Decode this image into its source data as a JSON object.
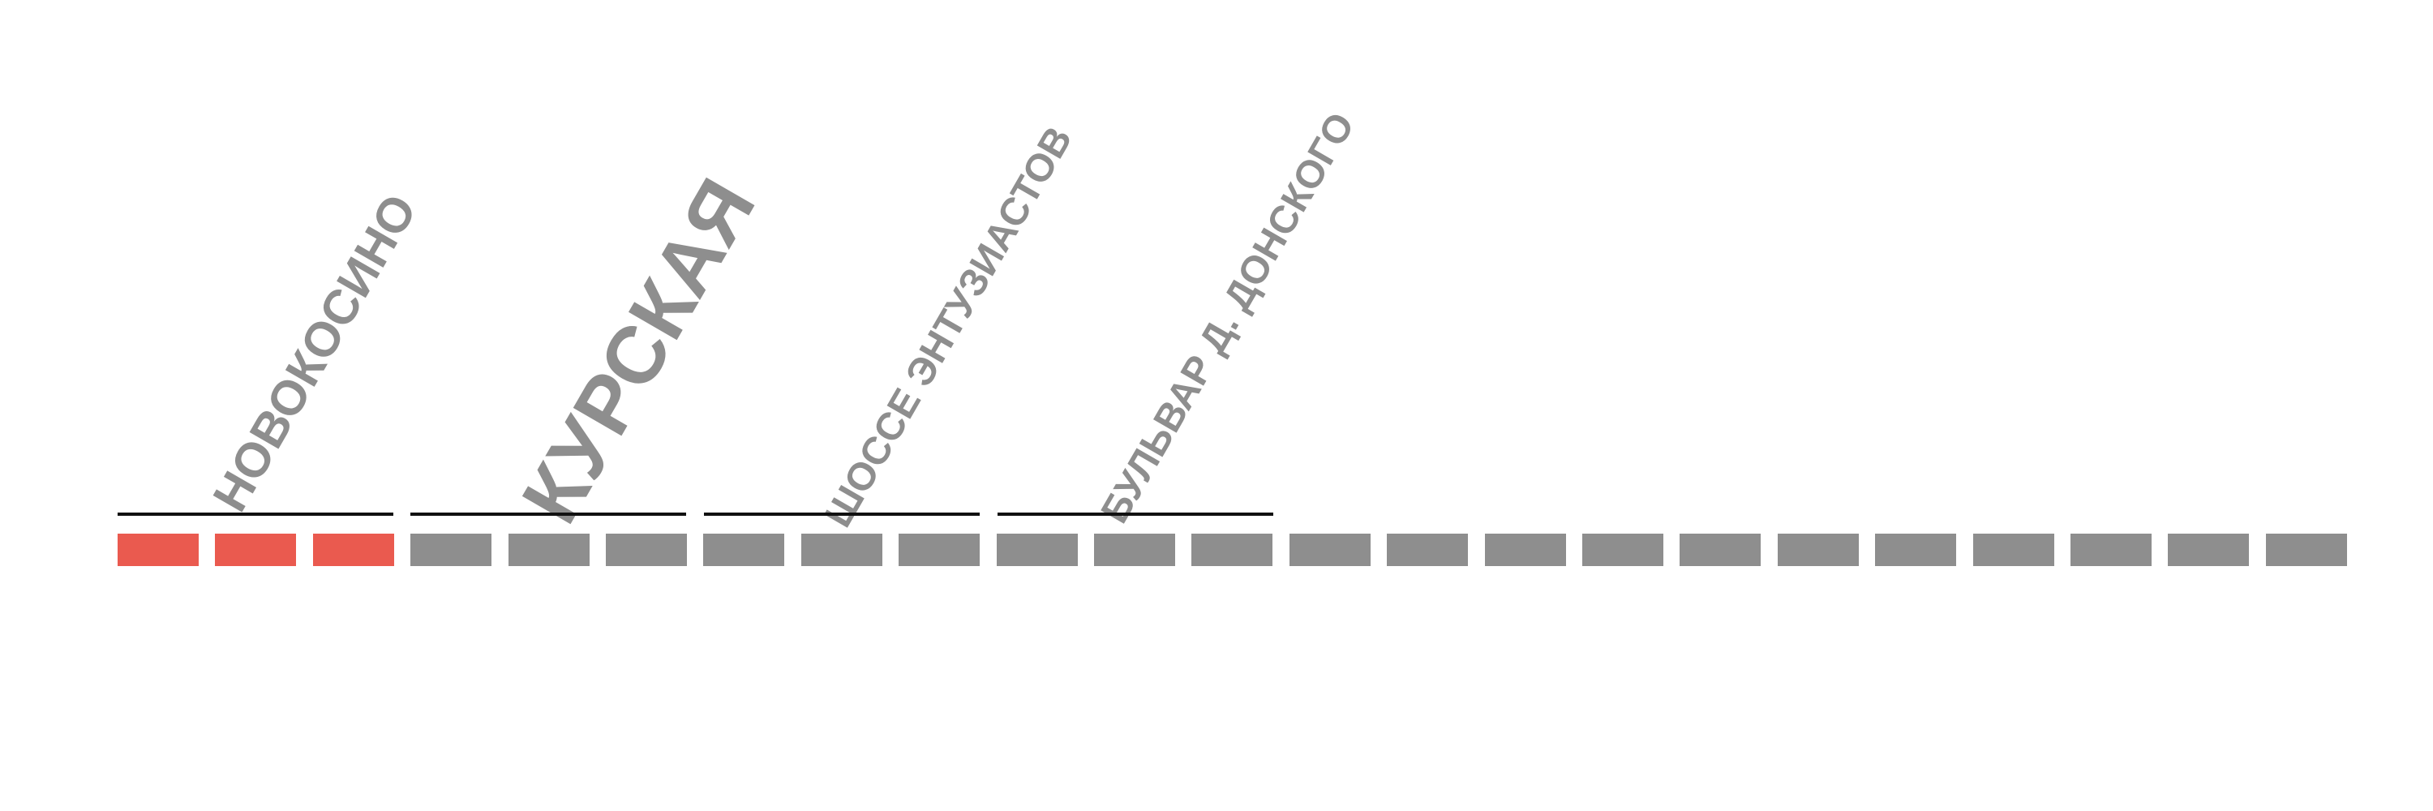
{
  "route": {
    "segment_count": 23,
    "segments_done": 3,
    "done_color": "#ea5a4f",
    "pending_color": "#8e8e8e",
    "stations": [
      {
        "label": "НОВОКОСИНО",
        "color": "#8e8e8e",
        "emphasis": "normal"
      },
      {
        "label": "КУРСКАЯ",
        "color": "#8e8e8e",
        "emphasis": "highlighted"
      },
      {
        "label": "ШОССЕ ЭНТУЗИАСТОВ",
        "color": "#8e8e8e",
        "emphasis": "normal"
      },
      {
        "label": "БУЛЬВАР Д. ДОНСКОГО",
        "color": "#8e8e8e",
        "emphasis": "normal"
      }
    ]
  }
}
